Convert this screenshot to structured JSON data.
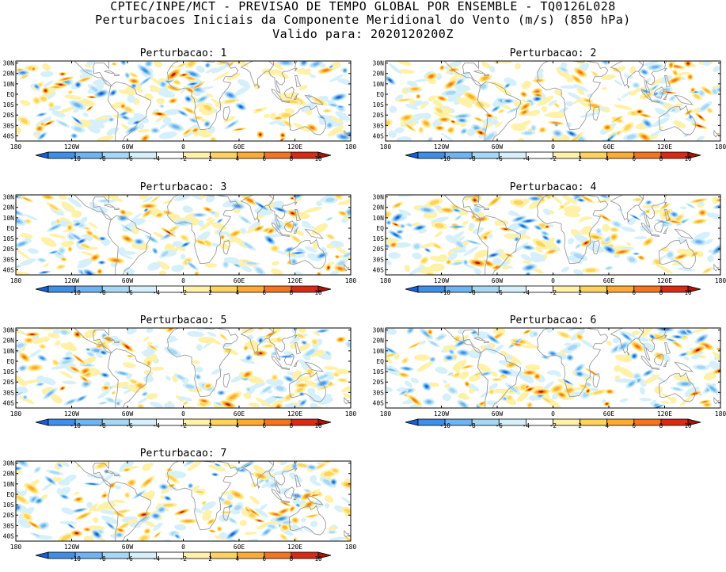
{
  "header": {
    "line1": "CPTEC/INPE/MCT - PREVISAO DE TEMPO GLOBAL POR ENSEMBLE - TQ0126L028",
    "line2": "Perturbacoes Iniciais da Componente Meridional do Vento (m/s) (850 hPa)",
    "line3": "Valido para: 2020120200Z"
  },
  "panels": [
    {
      "title": "Perturbacao: 1"
    },
    {
      "title": "Perturbacao: 2"
    },
    {
      "title": "Perturbacao: 3"
    },
    {
      "title": "Perturbacao: 4"
    },
    {
      "title": "Perturbacao: 5"
    },
    {
      "title": "Perturbacao: 6"
    },
    {
      "title": "Perturbacao: 7"
    }
  ],
  "axes": {
    "lat_labels": [
      "30N",
      "20N",
      "10N",
      "EQ",
      "10S",
      "20S",
      "30S",
      "40S"
    ],
    "lon_labels": [
      "180",
      "120W",
      "60W",
      "0",
      "60E",
      "120E",
      "180"
    ]
  },
  "colorbar": {
    "labels": [
      "-10",
      "-8",
      "-6",
      "-4",
      "-2",
      "2",
      "4",
      "6",
      "8",
      "10"
    ],
    "colors": [
      "#1a5bd6",
      "#3f8ee8",
      "#6fb3f0",
      "#a6d8f5",
      "#d6f0fb",
      "#ffffff",
      "#fff1a8",
      "#ffd35c",
      "#ffaa33",
      "#f5741f",
      "#d92b14",
      "#a81406"
    ]
  },
  "colors": {
    "land_outline": "#9a9a9a",
    "frame": "#000000"
  }
}
